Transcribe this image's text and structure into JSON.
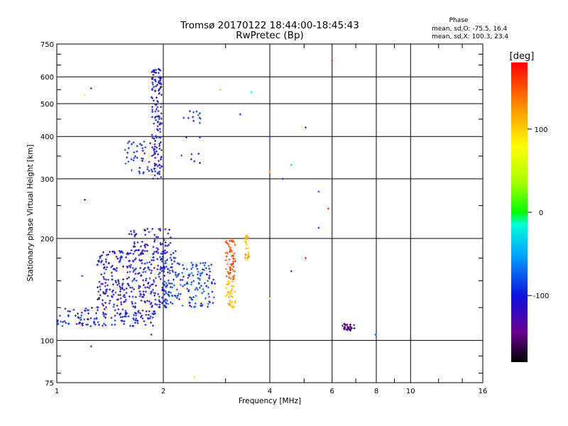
{
  "chart_data": {
    "type": "scatter",
    "title": "Tromsø 20170122 18:44:00-18:45:43",
    "subtitle": "RwPretec (Bp)",
    "xlabel": "Frequency [MHz]",
    "ylabel": "Stationary phase Virtual Height [km]",
    "x_scale": "log",
    "y_scale": "log",
    "xlim": [
      1,
      16
    ],
    "ylim": [
      75,
      750
    ],
    "x_ticks": [
      1,
      2,
      4,
      6,
      8,
      10,
      16
    ],
    "x_tick_labels": [
      "1",
      "2",
      "4",
      "6",
      "8",
      "10",
      "16"
    ],
    "y_ticks": [
      75,
      100,
      200,
      300,
      400,
      500,
      600,
      750
    ],
    "y_tick_labels": [
      "75",
      "100",
      "200",
      "300",
      "400",
      "500",
      "600",
      "750"
    ],
    "grid": true,
    "phase_box": {
      "heading": "Phase",
      "line_o": "mean, sd,O: -75.5, 16.4",
      "line_x": "mean, sd,X: 100.3, 23.4"
    },
    "colorbar": {
      "label": "[deg]",
      "range": [
        -180,
        180
      ],
      "ticks": [
        100,
        0,
        -100
      ],
      "tick_labels": [
        "100",
        "0",
        "-100"
      ]
    },
    "clusters": [
      {
        "x_range": [
          1.0,
          1.9
        ],
        "y_range": [
          110,
          125
        ],
        "phase": -100,
        "count": 140
      },
      {
        "x_range": [
          1.3,
          2.1
        ],
        "y_range": [
          125,
          150
        ],
        "phase": -105,
        "count": 160
      },
      {
        "x_range": [
          1.3,
          2.2
        ],
        "y_range": [
          150,
          185
        ],
        "phase": -100,
        "count": 190
      },
      {
        "x_range": [
          1.6,
          2.1
        ],
        "y_range": [
          180,
          215
        ],
        "phase": -110,
        "count": 70
      },
      {
        "x_range": [
          2.0,
          2.8
        ],
        "y_range": [
          125,
          170
        ],
        "phase": -85,
        "count": 150
      },
      {
        "x_range": [
          1.85,
          1.98
        ],
        "y_range": [
          300,
          640
        ],
        "phase": -105,
        "count": 150
      },
      {
        "x_range": [
          1.55,
          1.85
        ],
        "y_range": [
          310,
          390
        ],
        "phase": -95,
        "count": 40
      },
      {
        "x_range": [
          2.25,
          2.55
        ],
        "y_range": [
          320,
          480
        ],
        "phase": -95,
        "count": 20
      },
      {
        "x_range": [
          3.0,
          3.2
        ],
        "y_range": [
          125,
          150
        ],
        "phase": 105,
        "count": 40
      },
      {
        "x_range": [
          3.0,
          3.2
        ],
        "y_range": [
          150,
          200
        ],
        "phase": 150,
        "count": 60
      },
      {
        "x_range": [
          3.4,
          3.5
        ],
        "y_range": [
          170,
          205
        ],
        "phase": 110,
        "count": 25
      },
      {
        "x_range": [
          6.4,
          7.0
        ],
        "y_range": [
          107,
          112
        ],
        "phase": -150,
        "count": 30
      }
    ],
    "points": [
      {
        "x": 1.25,
        "y": 555,
        "phase": -135
      },
      {
        "x": 1.2,
        "y": 530,
        "phase": 70
      },
      {
        "x": 1.2,
        "y": 260,
        "phase": -110
      },
      {
        "x": 1.18,
        "y": 155,
        "phase": -80
      },
      {
        "x": 1.25,
        "y": 96,
        "phase": -150
      },
      {
        "x": 1.85,
        "y": 104,
        "phase": -130
      },
      {
        "x": 2.45,
        "y": 78,
        "phase": 45
      },
      {
        "x": 2.9,
        "y": 550,
        "phase": 105
      },
      {
        "x": 3.3,
        "y": 465,
        "phase": -125
      },
      {
        "x": 3.55,
        "y": 540,
        "phase": -20
      },
      {
        "x": 4.0,
        "y": 400,
        "phase": -120
      },
      {
        "x": 4.0,
        "y": 315,
        "phase": 130
      },
      {
        "x": 4.35,
        "y": 300,
        "phase": -120
      },
      {
        "x": 4.6,
        "y": 330,
        "phase": -40
      },
      {
        "x": 4.6,
        "y": 160,
        "phase": -110
      },
      {
        "x": 5.05,
        "y": 425,
        "phase": -120
      },
      {
        "x": 5.05,
        "y": 175,
        "phase": 160
      },
      {
        "x": 5.5,
        "y": 275,
        "phase": -90
      },
      {
        "x": 5.5,
        "y": 215,
        "phase": -120
      },
      {
        "x": 5.85,
        "y": 245,
        "phase": 170
      },
      {
        "x": 6.0,
        "y": 670,
        "phase": 165
      },
      {
        "x": 4.0,
        "y": 133,
        "phase": 60
      },
      {
        "x": 7.95,
        "y": 104,
        "phase": -60
      }
    ]
  }
}
